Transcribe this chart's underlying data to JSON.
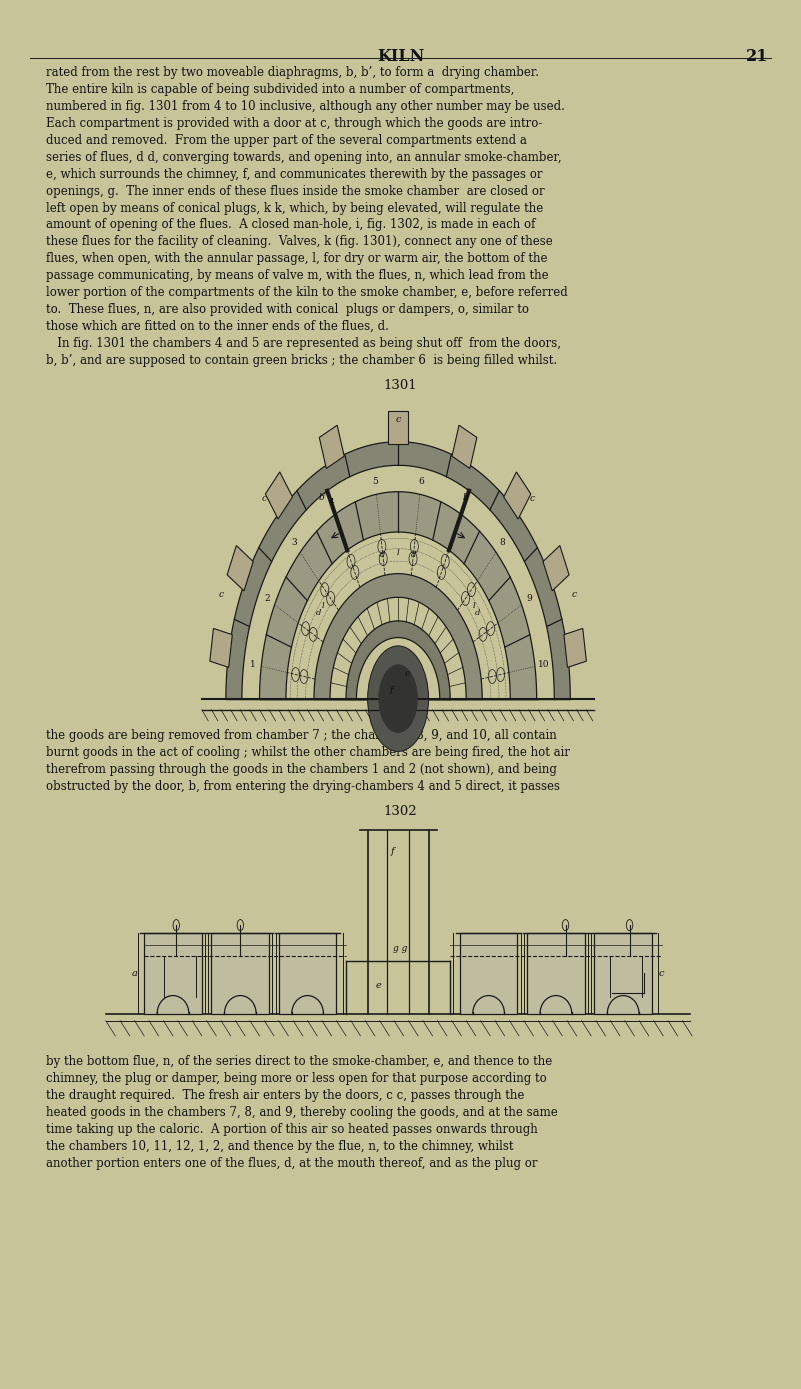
{
  "bg": "#c8c49a",
  "ec": "#1a1a1a",
  "tc": "#111111",
  "header_title": "KILN",
  "header_page": "21",
  "top_text": [
    "rated from the rest by two moveable diaphragms, b, b’, to form a  drying chamber.",
    "The entire kiln is capable of being subdivided into a number of compartments,",
    "numbered in fig. 1301 from 4 to 10 inclusive, although any other number may be used.",
    "Each compartment is provided with a door at c, through which the goods are intro-",
    "duced and removed.  From the upper part of the several compartments extend a",
    "series of flues, d d, converging towards, and opening into, an annular smoke-chamber,",
    "e, which surrounds the chimney, f, and communicates therewith by the passages or",
    "openings, g.  The inner ends of these flues inside the smoke chamber  are closed or",
    "left open by means of conical plugs, k k, which, by being elevated, will regulate the",
    "amount of opening of the flues.  A closed man-hole, i, fig. 1302, is made in each of",
    "these flues for the facility of cleaning.  Valves, k (fig. 1301), connect any one of these",
    "flues, when open, with the annular passage, l, for dry or warm air, the bottom of the",
    "passage communicating, by means of valve m, with the flues, n, which lead from the",
    "lower portion of the compartments of the kiln to the smoke chamber, e, before referred",
    "to.  These flues, n, are also provided with conical  plugs or dampers, o, similar to",
    "those which are fitted on to the inner ends of the flues, d.",
    "   In fig. 1301 the chambers 4 and 5 are represented as being shut off  from the doors,",
    "b, b’, and are supposed to contain green bricks ; the chamber 6  is being filled whilst."
  ],
  "mid_text": [
    "the goods are being removed from chamber 7 ; the chambers 8, 9, and 10, all contain",
    "burnt goods in the act of cooling ; whilst the other chambers are being fired, the hot air",
    "therefrom passing through the goods in the chambers 1 and 2 (not shown), and being",
    "obstructed by the door, b, from entering the drying-chambers 4 and 5 direct, it passes"
  ],
  "bottom_text": [
    "by the bottom flue, n, of the series direct to the smoke-chamber, e, and thence to the",
    "chimney, the plug or damper, being more or less open for that purpose according to",
    "the draught required.  The fresh air enters by the doors, c c, passes through the",
    "heated goods in the chambers 7, 8, and 9, thereby cooling the goods, and at the same",
    "time taking up the caloric.  A portion of this air so heated passes onwards through",
    "the chambers 10, 11, 12, 1, 2, and thence by the flue, n, to the chimney, whilst",
    "another portion enters one of the flues, d, at the mouth thereof, and as the plug or"
  ],
  "fs_body": 8.5,
  "fs_header": 11.5,
  "fs_fignum": 9.5,
  "lh": 0.0122,
  "ml": 0.058,
  "mr": 0.942
}
